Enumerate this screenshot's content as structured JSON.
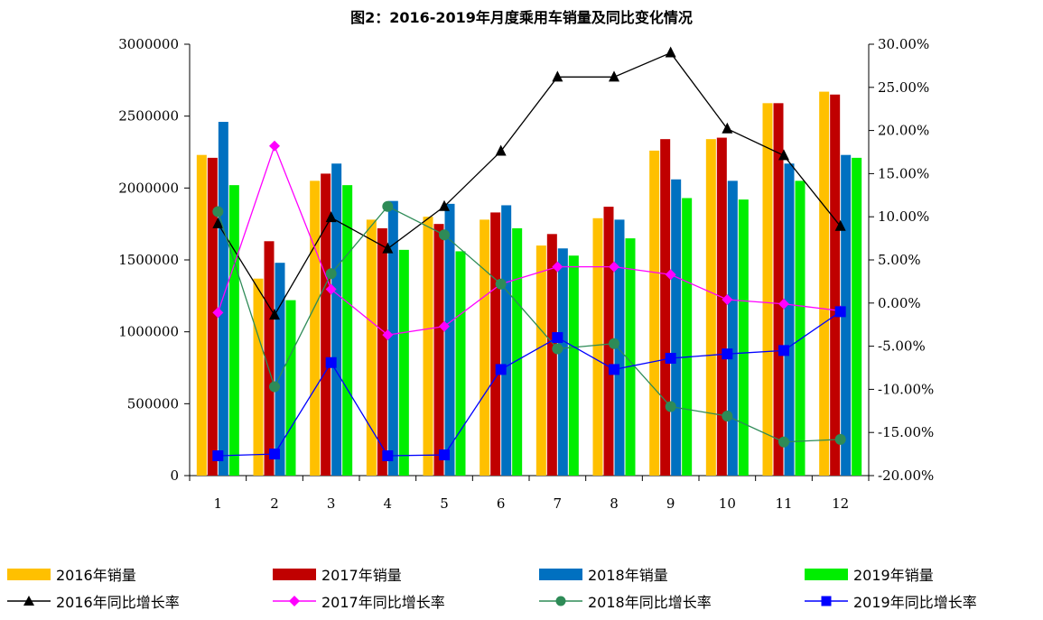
{
  "chart_data": {
    "type": "bar",
    "title": "图2：2016-2019年月度乘用车销量及同比变化情况",
    "categories": [
      "1",
      "2",
      "3",
      "4",
      "5",
      "6",
      "7",
      "8",
      "9",
      "10",
      "11",
      "12"
    ],
    "y_left": {
      "min": 0,
      "max": 3000000,
      "ticks": [
        "0",
        "500000",
        "1000000",
        "1500000",
        "2000000",
        "2500000",
        "3000000"
      ]
    },
    "y_right": {
      "min": -20,
      "max": 30,
      "ticks": [
        "-20.00%",
        "-15.00%",
        "-10.00%",
        "-5.00%",
        "0.00%",
        "5.00%",
        "10.00%",
        "15.00%",
        "20.00%",
        "25.00%",
        "30.00%"
      ]
    },
    "bar_series": [
      {
        "name": "2016年销量",
        "color": "#FFC000",
        "values": [
          2230000,
          1370000,
          2050000,
          1780000,
          1800000,
          1780000,
          1600000,
          1790000,
          2260000,
          2340000,
          2590000,
          2670000
        ]
      },
      {
        "name": "2017年销量",
        "color": "#C00000",
        "values": [
          2210000,
          1630000,
          2100000,
          1720000,
          1750000,
          1830000,
          1680000,
          1870000,
          2340000,
          2350000,
          2590000,
          2650000
        ]
      },
      {
        "name": "2018年销量",
        "color": "#0070C0",
        "values": [
          2460000,
          1480000,
          2170000,
          1910000,
          1890000,
          1880000,
          1580000,
          1780000,
          2060000,
          2050000,
          2170000,
          2230000
        ]
      },
      {
        "name": "2019年销量",
        "color": "#00EE00",
        "values": [
          2020000,
          1220000,
          2020000,
          1570000,
          1560000,
          1720000,
          1530000,
          1650000,
          1930000,
          1920000,
          2050000,
          2210000
        ]
      }
    ],
    "line_series": [
      {
        "name": "2016年同比增长率",
        "color": "#000000",
        "marker": "triangle",
        "values": [
          9.2,
          -1.4,
          9.9,
          6.3,
          11.2,
          17.6,
          26.2,
          26.2,
          29.0,
          20.2,
          17.1,
          8.9
        ]
      },
      {
        "name": "2017年同比增长率",
        "color": "#FF00FF",
        "marker": "diamond",
        "values": [
          -1.1,
          18.2,
          1.6,
          -3.7,
          -2.7,
          2.2,
          4.2,
          4.2,
          3.3,
          0.4,
          -0.1,
          -0.9
        ]
      },
      {
        "name": "2018年同比增长率",
        "color": "#2E8B57",
        "marker": "circle",
        "values": [
          10.6,
          -9.7,
          3.4,
          11.2,
          7.9,
          2.2,
          -5.3,
          -4.7,
          -12.0,
          -13.1,
          -16.1,
          -15.8
        ]
      },
      {
        "name": "2019年同比增长率",
        "color": "#0000FF",
        "marker": "square",
        "values": [
          -17.7,
          -17.5,
          -6.9,
          -17.7,
          -17.6,
          -7.7,
          -4.0,
          -7.7,
          -6.4,
          -5.9,
          -5.5,
          -1.0
        ]
      }
    ]
  }
}
